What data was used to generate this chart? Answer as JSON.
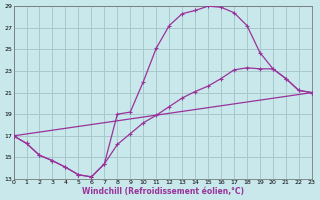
{
  "xlabel": "Windchill (Refroidissement éolien,°C)",
  "bg_color": "#c8e8ec",
  "grid_color": "#a8c8cc",
  "line_color": "#993399",
  "xlim": [
    0,
    23
  ],
  "ylim": [
    13,
    29
  ],
  "yticks": [
    13,
    15,
    17,
    19,
    21,
    23,
    25,
    27,
    29
  ],
  "xticks": [
    0,
    1,
    2,
    3,
    4,
    5,
    6,
    7,
    8,
    9,
    10,
    11,
    12,
    13,
    14,
    15,
    16,
    17,
    18,
    19,
    20,
    21,
    22,
    23
  ],
  "curve1_x": [
    0,
    1,
    2,
    3,
    4,
    5,
    6,
    7,
    8,
    9,
    10,
    11,
    12,
    13,
    14,
    15,
    16,
    17,
    18,
    19,
    20,
    21,
    22,
    23
  ],
  "curve1_y": [
    17.0,
    16.3,
    15.2,
    14.7,
    14.1,
    13.4,
    13.2,
    14.4,
    19.0,
    19.2,
    22.0,
    25.1,
    27.2,
    28.3,
    28.6,
    29.0,
    28.9,
    28.4,
    27.2,
    24.7,
    23.2,
    22.3,
    21.2,
    21.0
  ],
  "curve2_x": [
    0,
    1,
    2,
    3,
    4,
    5,
    6,
    7,
    8,
    9,
    10,
    11,
    12,
    13,
    14,
    15,
    16,
    17,
    18,
    19,
    20,
    21,
    22,
    23
  ],
  "curve2_y": [
    17.0,
    16.3,
    15.2,
    14.7,
    14.1,
    13.4,
    13.2,
    14.4,
    16.2,
    17.2,
    18.2,
    18.9,
    19.7,
    20.5,
    21.1,
    21.6,
    22.3,
    23.1,
    23.3,
    23.2,
    23.2,
    22.3,
    21.2,
    21.0
  ],
  "line3_x": [
    0,
    23
  ],
  "line3_y": [
    17.0,
    21.0
  ]
}
